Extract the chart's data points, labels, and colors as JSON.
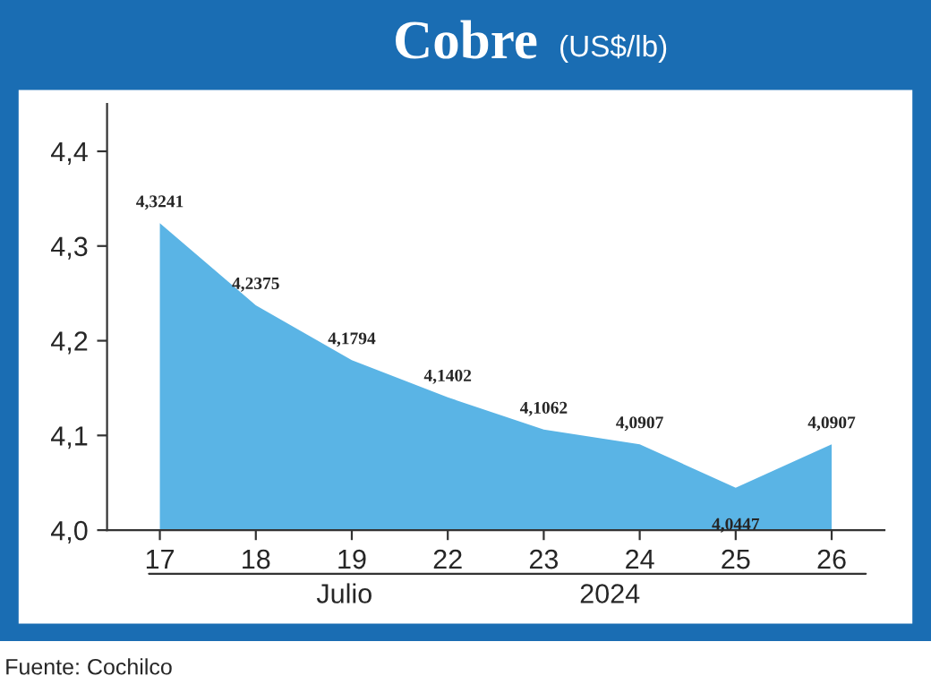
{
  "chart_data": {
    "type": "area",
    "title": "Cobre",
    "subtitle": "(US$/lb)",
    "categories": [
      "17",
      "18",
      "19",
      "22",
      "23",
      "24",
      "25",
      "26"
    ],
    "series": [
      {
        "color": "#5ab4e5",
        "values": [
          4.3241,
          4.2375,
          4.1794,
          4.1402,
          4.1062,
          4.0907,
          4.0447,
          4.0907
        ],
        "value_labels": [
          "4,3241",
          "4,2375",
          "4,1794",
          "4,1402",
          "4,1062",
          "4,0907",
          "4,0447",
          "4,0907"
        ]
      }
    ],
    "ylim": [
      4.0,
      4.45
    ],
    "yticks": [
      {
        "value": 4.0,
        "label": "4,0"
      },
      {
        "value": 4.1,
        "label": "4,1"
      },
      {
        "value": 4.2,
        "label": "4,2"
      },
      {
        "value": 4.3,
        "label": "4,3"
      },
      {
        "value": 4.4,
        "label": "4,4"
      }
    ],
    "annotations": [
      "Julio",
      "2024",
      "Fuente: Cochilco"
    ],
    "grid": false,
    "legend": false
  }
}
